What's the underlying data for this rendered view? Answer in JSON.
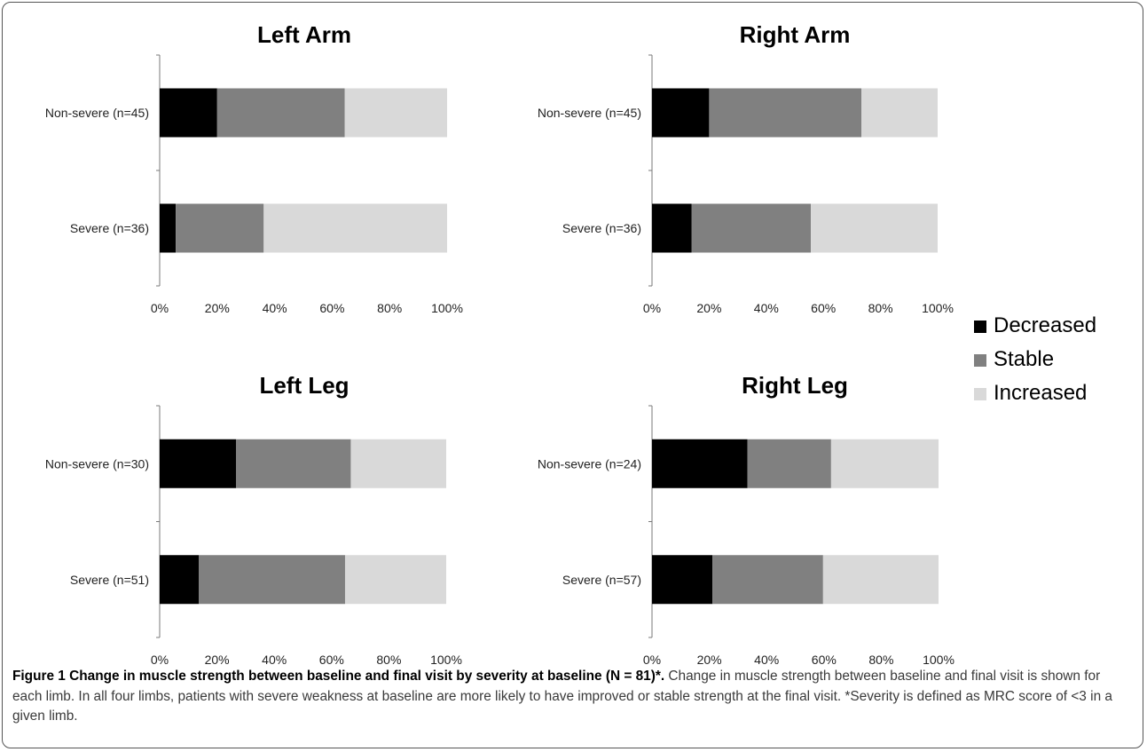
{
  "chart_data": [
    {
      "type": "bar",
      "stacked": "percent",
      "orientation": "horizontal",
      "title": "Left Arm",
      "categories": [
        "Non-severe (n=45)",
        "Severe (n=36)"
      ],
      "series": [
        {
          "name": "Decreased",
          "values": [
            20,
            5.6
          ]
        },
        {
          "name": "Stable",
          "values": [
            44.4,
            30.6
          ]
        },
        {
          "name": "Increased",
          "values": [
            35.6,
            63.8
          ]
        }
      ],
      "xlim": [
        0,
        100
      ],
      "x_ticks": [
        "0%",
        "20%",
        "40%",
        "60%",
        "80%",
        "100%"
      ],
      "grid": false
    },
    {
      "type": "bar",
      "stacked": "percent",
      "orientation": "horizontal",
      "title": "Right Arm",
      "categories": [
        "Non-severe (n=45)",
        "Severe (n=36)"
      ],
      "series": [
        {
          "name": "Decreased",
          "values": [
            20,
            13.9
          ]
        },
        {
          "name": "Stable",
          "values": [
            53.3,
            41.7
          ]
        },
        {
          "name": "Increased",
          "values": [
            26.7,
            44.4
          ]
        }
      ],
      "xlim": [
        0,
        100
      ],
      "x_ticks": [
        "0%",
        "20%",
        "40%",
        "60%",
        "80%",
        "100%"
      ],
      "grid": false
    },
    {
      "type": "bar",
      "stacked": "percent",
      "orientation": "horizontal",
      "title": "Left Leg",
      "categories": [
        "Non-severe (n=30)",
        "Severe (n=51)"
      ],
      "series": [
        {
          "name": "Decreased",
          "values": [
            26.7,
            13.7
          ]
        },
        {
          "name": "Stable",
          "values": [
            40,
            51
          ]
        },
        {
          "name": "Increased",
          "values": [
            33.3,
            35.3
          ]
        }
      ],
      "xlim": [
        0,
        100
      ],
      "x_ticks": [
        "0%",
        "20%",
        "40%",
        "60%",
        "80%",
        "100%"
      ],
      "grid": false
    },
    {
      "type": "bar",
      "stacked": "percent",
      "orientation": "horizontal",
      "title": "Right Leg",
      "categories": [
        "Non-severe (n=24)",
        "Severe (n=57)"
      ],
      "series": [
        {
          "name": "Decreased",
          "values": [
            33.3,
            21.1
          ]
        },
        {
          "name": "Stable",
          "values": [
            29.2,
            38.6
          ]
        },
        {
          "name": "Increased",
          "values": [
            37.5,
            40.3
          ]
        }
      ],
      "xlim": [
        0,
        100
      ],
      "x_ticks": [
        "0%",
        "20%",
        "40%",
        "60%",
        "80%",
        "100%"
      ],
      "grid": false
    }
  ],
  "legend": {
    "placement": "right",
    "items": [
      {
        "label": "Decreased",
        "color": "#000000"
      },
      {
        "label": "Stable",
        "color": "#808080"
      },
      {
        "label": "Increased",
        "color": "#d9d9d9"
      }
    ]
  },
  "caption": {
    "title": "Figure 1 Change in muscle strength between baseline and final visit by severity at baseline (N = 81)*.",
    "text": " Change in muscle strength between baseline and final visit is shown for each limb. In all four limbs, patients with severe weakness at baseline are more likely to have improved or stable strength at the final visit. *Severity is defined as MRC score of <3 in a given limb."
  }
}
